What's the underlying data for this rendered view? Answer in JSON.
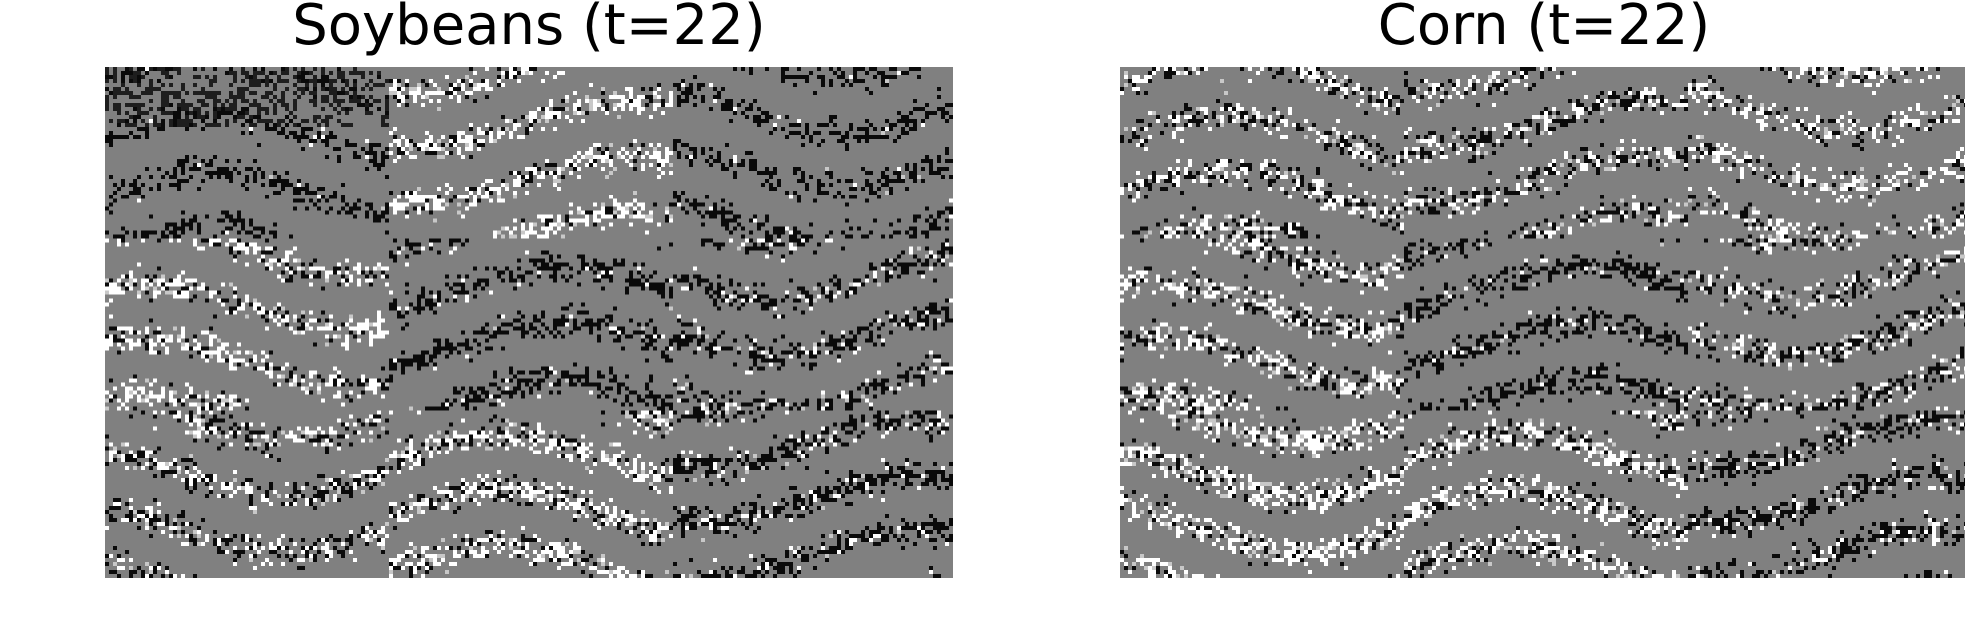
{
  "panels": [
    {
      "title": "Soybeans (t=22)",
      "tiles": [
        [
          {
            "dark": 0.2,
            "light": 0.01,
            "black": true
          },
          {
            "dark": 0.06,
            "light": 0.22
          },
          {
            "dark": 0.2,
            "light": 0.01
          }
        ],
        [
          {
            "dark": 0.08,
            "light": 0.2
          },
          {
            "dark": 0.22,
            "light": 0.02
          },
          {
            "dark": 0.18,
            "light": 0.06
          }
        ],
        [
          {
            "dark": 0.12,
            "light": 0.14
          },
          {
            "dark": 0.08,
            "light": 0.22
          },
          {
            "dark": 0.22,
            "light": 0.05
          }
        ]
      ]
    },
    {
      "title": "Corn (t=22)",
      "tiles": [
        [
          {
            "dark": 0.12,
            "light": 0.14
          },
          {
            "dark": 0.14,
            "light": 0.12
          },
          {
            "dark": 0.06,
            "light": 0.16
          }
        ],
        [
          {
            "dark": 0.1,
            "light": 0.18
          },
          {
            "dark": 0.22,
            "light": 0.02
          },
          {
            "dark": 0.14,
            "light": 0.1
          }
        ],
        [
          {
            "dark": 0.06,
            "light": 0.24
          },
          {
            "dark": 0.1,
            "light": 0.2
          },
          {
            "dark": 0.2,
            "light": 0.06
          }
        ]
      ]
    }
  ],
  "colors": {
    "background": "#ffffff",
    "base": "#808080",
    "dark": "#0a0a0a",
    "light": "#ffffff",
    "mid_light": "#c8c8c8"
  }
}
